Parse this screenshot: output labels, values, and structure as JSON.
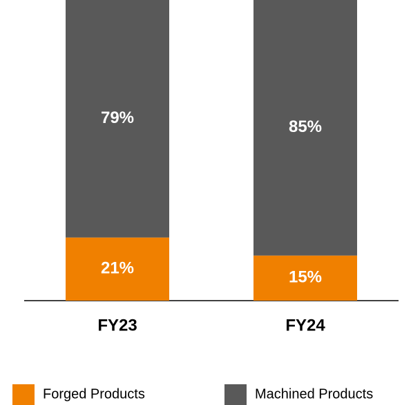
{
  "chart_data": {
    "type": "stacked_bar",
    "categories": [
      "FY23",
      "FY24"
    ],
    "series": [
      {
        "name": "Forged Products",
        "color": "#f08000",
        "values": [
          21,
          15
        ],
        "value_labels": [
          "21%",
          "15%"
        ]
      },
      {
        "name": "Machined Products",
        "color": "#595959",
        "values": [
          79,
          85
        ],
        "value_labels": [
          "79%",
          "85%"
        ]
      }
    ],
    "ylim": [
      0,
      100
    ]
  }
}
